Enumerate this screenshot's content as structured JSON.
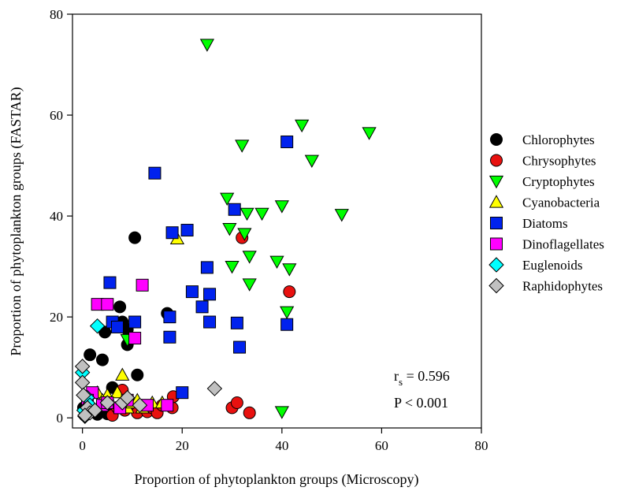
{
  "chart_data": {
    "type": "scatter",
    "title": "",
    "xlabel": "Proportion of phytoplankton groups (Microscopy)",
    "ylabel": "Proportion of phytoplankton groups (FASTAR)",
    "xlim": [
      -2,
      80
    ],
    "ylim": [
      -2,
      80
    ],
    "xticks": [
      "0",
      "20",
      "40",
      "60",
      "80"
    ],
    "yticks": [
      "0",
      "20",
      "40",
      "60",
      "80"
    ],
    "grid": false,
    "legend_position": "right",
    "annotations": {
      "rs_label": "r",
      "rs_sub": "s",
      "rs_value": " = 0.596",
      "p_text": "P < 0.001"
    },
    "series": [
      {
        "name": "Chlorophytes",
        "marker": "circle",
        "color": "#000000",
        "points": [
          [
            1.5,
            12.5
          ],
          [
            4,
            11.5
          ],
          [
            4.5,
            17
          ],
          [
            6,
            6
          ],
          [
            7,
            18.5
          ],
          [
            7.5,
            22
          ],
          [
            8,
            19
          ],
          [
            9,
            17.5
          ],
          [
            9,
            14.5
          ],
          [
            10.5,
            35.7
          ],
          [
            11,
            8.5
          ],
          [
            17,
            20.7
          ],
          [
            0.5,
            0.5
          ],
          [
            1,
            1
          ],
          [
            2,
            1.5
          ],
          [
            3,
            0.7
          ],
          [
            4,
            1.2
          ],
          [
            5,
            0.8
          ],
          [
            0.2,
            2
          ]
        ]
      },
      {
        "name": "Chrysophytes",
        "marker": "circle",
        "color": "#e8110f",
        "points": [
          [
            6,
            0.5
          ],
          [
            7,
            2
          ],
          [
            8,
            5.5
          ],
          [
            8.5,
            1.5
          ],
          [
            9.5,
            2.5
          ],
          [
            11,
            1
          ],
          [
            13,
            1.2
          ],
          [
            14,
            2
          ],
          [
            15,
            1
          ],
          [
            16,
            2.5
          ],
          [
            18,
            2
          ],
          [
            18.2,
            4.2
          ],
          [
            30,
            2
          ],
          [
            31,
            3
          ],
          [
            32,
            35.7
          ],
          [
            33.5,
            1
          ],
          [
            41.5,
            25
          ]
        ]
      },
      {
        "name": "Cryptophytes",
        "marker": "triangle-down",
        "color": "#00ff00",
        "points": [
          [
            25,
            74
          ],
          [
            29,
            43.5
          ],
          [
            29.5,
            37.5
          ],
          [
            30,
            30
          ],
          [
            32,
            54
          ],
          [
            32.5,
            36.5
          ],
          [
            33,
            40.5
          ],
          [
            33.5,
            32
          ],
          [
            33.5,
            26.5
          ],
          [
            36,
            40.5
          ],
          [
            39,
            31
          ],
          [
            40,
            42
          ],
          [
            40,
            1.2
          ],
          [
            41,
            21
          ],
          [
            41.5,
            29.5
          ],
          [
            44,
            58
          ],
          [
            46,
            51
          ],
          [
            52,
            40.3
          ],
          [
            57.5,
            56.5
          ],
          [
            9,
            15.5
          ]
        ]
      },
      {
        "name": "Cyanobacteria",
        "marker": "triangle-up",
        "color": "#ffff00",
        "points": [
          [
            3,
            5
          ],
          [
            4,
            3.5
          ],
          [
            5,
            4.5
          ],
          [
            7,
            5
          ],
          [
            8,
            8.5
          ],
          [
            9,
            2
          ],
          [
            10,
            3
          ],
          [
            11,
            3.5
          ],
          [
            12,
            2
          ],
          [
            14,
            3
          ],
          [
            16,
            3
          ],
          [
            19,
            35.5
          ]
        ]
      },
      {
        "name": "Diatoms",
        "marker": "square",
        "color": "#0022ee",
        "points": [
          [
            5.5,
            26.8
          ],
          [
            6,
            19
          ],
          [
            7,
            18
          ],
          [
            10.5,
            19
          ],
          [
            14.5,
            48.5
          ],
          [
            17.5,
            20
          ],
          [
            17.5,
            16
          ],
          [
            18,
            36.7
          ],
          [
            20,
            5
          ],
          [
            21,
            37.2
          ],
          [
            22,
            25
          ],
          [
            24,
            22
          ],
          [
            25,
            29.8
          ],
          [
            25.5,
            24.5
          ],
          [
            25.5,
            19
          ],
          [
            30.5,
            41.3
          ],
          [
            31,
            18.8
          ],
          [
            31.5,
            14
          ],
          [
            41,
            54.7
          ],
          [
            41,
            18.5
          ]
        ]
      },
      {
        "name": "Dinoflagellates",
        "marker": "square",
        "color": "#ff00ff",
        "points": [
          [
            3,
            22.5
          ],
          [
            5,
            22.5
          ],
          [
            10.5,
            15.8
          ],
          [
            12,
            26.3
          ],
          [
            2,
            5
          ],
          [
            4,
            2.5
          ],
          [
            5,
            3
          ],
          [
            7.5,
            2
          ],
          [
            9,
            3.5
          ],
          [
            13,
            2.5
          ],
          [
            17,
            2.5
          ],
          [
            1,
            3.5
          ]
        ]
      },
      {
        "name": "Euglenoids",
        "marker": "diamond",
        "color": "#00ffff",
        "points": [
          [
            3,
            18.2
          ],
          [
            0,
            9
          ],
          [
            0.3,
            1.5
          ],
          [
            0.5,
            0.3
          ],
          [
            1,
            4
          ],
          [
            1.5,
            2.5
          ]
        ]
      },
      {
        "name": "Raphidophytes",
        "marker": "diamond",
        "color": "#c0c0c0",
        "points": [
          [
            26.5,
            5.8
          ],
          [
            0,
            10.2
          ],
          [
            0,
            7
          ],
          [
            0.2,
            4.5
          ],
          [
            1,
            2
          ],
          [
            1.5,
            1
          ],
          [
            2.5,
            1.5
          ],
          [
            5,
            3
          ],
          [
            8,
            3
          ],
          [
            9,
            4
          ],
          [
            11.5,
            2.5
          ],
          [
            0.5,
            0.5
          ]
        ]
      }
    ]
  }
}
